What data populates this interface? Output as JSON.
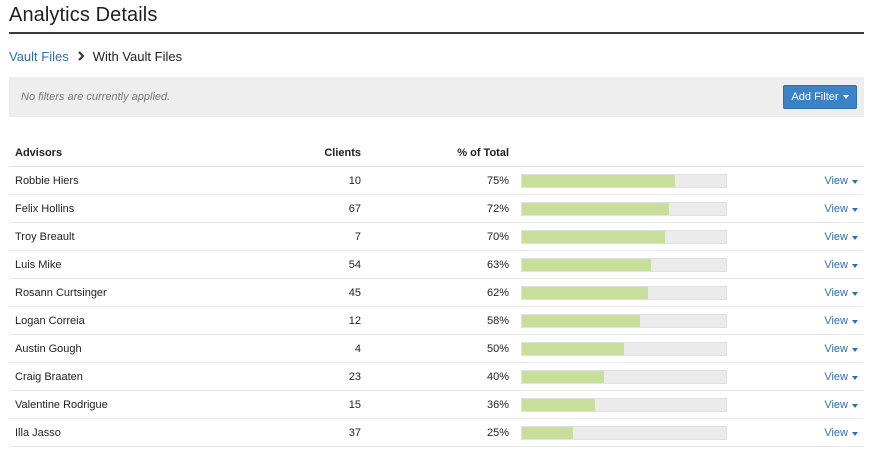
{
  "header": {
    "title": "Analytics Details"
  },
  "breadcrumb": {
    "parent": "Vault Files",
    "current": "With Vault Files"
  },
  "filters": {
    "message": "No filters are currently applied.",
    "add_label": "Add Filter"
  },
  "table": {
    "columns": {
      "advisors": "Advisors",
      "clients": "Clients",
      "pct": "% of Total"
    },
    "view_label": "View",
    "rows": [
      {
        "name": "Robbie Hiers",
        "clients": "10",
        "pct": "75%",
        "fill": 0.75
      },
      {
        "name": "Felix Hollins",
        "clients": "67",
        "pct": "72%",
        "fill": 0.72
      },
      {
        "name": "Troy Breault",
        "clients": "7",
        "pct": "70%",
        "fill": 0.7
      },
      {
        "name": "Luis Mike",
        "clients": "54",
        "pct": "63%",
        "fill": 0.63
      },
      {
        "name": "Rosann Curtsinger",
        "clients": "45",
        "pct": "62%",
        "fill": 0.62
      },
      {
        "name": "Logan Correia",
        "clients": "12",
        "pct": "58%",
        "fill": 0.58
      },
      {
        "name": "Austin Gough",
        "clients": "4",
        "pct": "50%",
        "fill": 0.5
      },
      {
        "name": "Craig Braaten",
        "clients": "23",
        "pct": "40%",
        "fill": 0.4
      },
      {
        "name": "Valentine Rodrigue",
        "clients": "15",
        "pct": "36%",
        "fill": 0.36
      },
      {
        "name": "Illa Jasso",
        "clients": "37",
        "pct": "25%",
        "fill": 0.25
      }
    ]
  },
  "colors": {
    "accent": "#3b83c6",
    "link": "#2f6fab",
    "bar_fill": "#c7df9b",
    "bar_track": "#ebebeb"
  }
}
